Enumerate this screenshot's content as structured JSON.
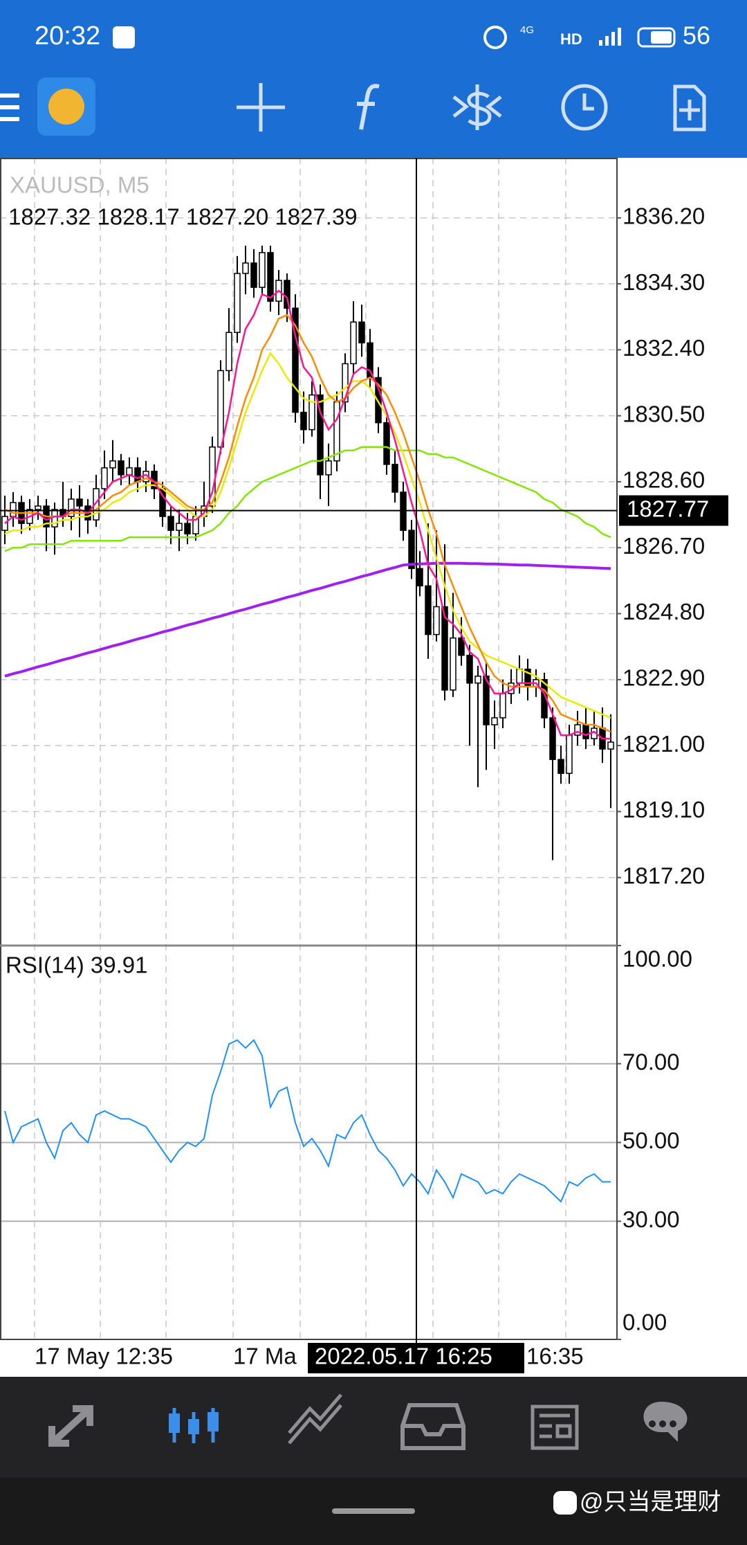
{
  "status_bar": {
    "time": "20:32",
    "network": "4G",
    "hd": "HD",
    "battery": "56"
  },
  "chart_data": [
    {
      "type": "candlestick",
      "title": "XAUUSD, M5",
      "subtitle": "1827.32 1828.17 1827.20 1827.39",
      "categories": [
        null,
        null,
        null,
        null,
        null,
        null,
        null,
        null,
        null,
        null,
        null,
        null,
        null,
        null,
        null,
        null,
        null,
        null,
        null,
        null,
        null,
        null,
        null,
        null,
        null,
        null,
        null,
        null,
        null,
        null,
        null,
        null,
        null,
        null,
        null,
        null,
        null,
        null,
        null,
        null,
        null,
        null,
        null,
        null,
        null,
        null,
        null,
        null,
        null,
        null,
        null,
        null,
        null,
        null,
        null,
        null,
        null,
        null,
        null,
        null,
        null,
        null,
        null,
        null,
        null,
        null,
        null,
        null,
        null,
        null,
        null,
        null,
        null,
        null
      ],
      "candles": [
        [
          1827.2,
          1828.2,
          1826.8,
          1827.6
        ],
        [
          1827.6,
          1828.3,
          1827.3,
          1828.0
        ],
        [
          1828.0,
          1828.2,
          1827.1,
          1827.4
        ],
        [
          1827.4,
          1828.1,
          1827.2,
          1827.8
        ],
        [
          1827.8,
          1828.2,
          1827.5,
          1827.9
        ],
        [
          1827.9,
          1828.1,
          1826.6,
          1827.3
        ],
        [
          1827.3,
          1828.0,
          1826.5,
          1827.8
        ],
        [
          1827.8,
          1828.6,
          1827.3,
          1827.6
        ],
        [
          1827.6,
          1828.4,
          1827.2,
          1828.1
        ],
        [
          1828.1,
          1828.5,
          1827.0,
          1827.9
        ],
        [
          1827.9,
          1828.1,
          1827.1,
          1827.5
        ],
        [
          1827.5,
          1828.8,
          1827.3,
          1828.4
        ],
        [
          1828.4,
          1829.5,
          1828.1,
          1829.0
        ],
        [
          1829.0,
          1829.8,
          1828.6,
          1829.2
        ],
        [
          1829.2,
          1829.4,
          1828.5,
          1828.8
        ],
        [
          1828.8,
          1829.3,
          1828.5,
          1829.0
        ],
        [
          1829.0,
          1829.3,
          1828.3,
          1828.6
        ],
        [
          1828.6,
          1829.2,
          1828.3,
          1828.9
        ],
        [
          1828.9,
          1829.1,
          1828.1,
          1828.4
        ],
        [
          1828.4,
          1828.6,
          1827.3,
          1827.6
        ],
        [
          1827.6,
          1827.9,
          1826.8,
          1827.2
        ],
        [
          1827.2,
          1827.8,
          1826.6,
          1827.4
        ],
        [
          1827.4,
          1827.7,
          1826.8,
          1827.1
        ],
        [
          1827.1,
          1827.9,
          1826.9,
          1827.6
        ],
        [
          1827.6,
          1828.6,
          1827.3,
          1827.9
        ],
        [
          1827.9,
          1829.9,
          1827.7,
          1829.6
        ],
        [
          1829.6,
          1832.1,
          1829.4,
          1831.8
        ],
        [
          1831.8,
          1833.6,
          1831.5,
          1832.9
        ],
        [
          1832.9,
          1835.1,
          1832.6,
          1834.6
        ],
        [
          1834.6,
          1835.4,
          1834.0,
          1834.9
        ],
        [
          1834.9,
          1835.3,
          1833.9,
          1834.2
        ],
        [
          1834.2,
          1835.4,
          1834.0,
          1835.2
        ],
        [
          1835.2,
          1835.4,
          1833.5,
          1833.8
        ],
        [
          1833.8,
          1834.7,
          1833.4,
          1834.4
        ],
        [
          1834.4,
          1834.6,
          1833.2,
          1833.6
        ],
        [
          1833.6,
          1834.0,
          1830.3,
          1830.6
        ],
        [
          1830.6,
          1831.2,
          1829.7,
          1830.1
        ],
        [
          1830.1,
          1831.5,
          1829.9,
          1831.1
        ],
        [
          1831.1,
          1831.4,
          1828.1,
          1828.8
        ],
        [
          1828.8,
          1829.7,
          1827.9,
          1829.2
        ],
        [
          1829.2,
          1831.2,
          1828.9,
          1830.9
        ],
        [
          1830.9,
          1832.3,
          1830.6,
          1832.0
        ],
        [
          1832.0,
          1833.8,
          1831.7,
          1833.2
        ],
        [
          1833.2,
          1833.7,
          1832.2,
          1832.6
        ],
        [
          1832.6,
          1833.0,
          1831.3,
          1831.6
        ],
        [
          1831.6,
          1831.9,
          1830.0,
          1830.3
        ],
        [
          1830.3,
          1830.6,
          1828.8,
          1829.1
        ],
        [
          1829.1,
          1829.5,
          1828.0,
          1828.3
        ],
        [
          1828.3,
          1828.6,
          1826.9,
          1827.2
        ],
        [
          1827.2,
          1827.5,
          1825.8,
          1826.1
        ],
        [
          1826.1,
          1826.6,
          1825.3,
          1825.6
        ],
        [
          1825.6,
          1827.4,
          1823.5,
          1824.2
        ],
        [
          1824.2,
          1827.2,
          1824.0,
          1825.0
        ],
        [
          1825.0,
          1826.8,
          1822.3,
          1822.6
        ],
        [
          1822.6,
          1825.4,
          1822.4,
          1824.1
        ],
        [
          1824.1,
          1824.7,
          1823.3,
          1823.6
        ],
        [
          1823.6,
          1823.9,
          1821.0,
          1822.8
        ],
        [
          1822.8,
          1823.3,
          1819.8,
          1823.0
        ],
        [
          1823.0,
          1823.4,
          1820.3,
          1821.6
        ],
        [
          1821.6,
          1822.3,
          1820.9,
          1821.8
        ],
        [
          1821.8,
          1822.9,
          1821.5,
          1822.5
        ],
        [
          1822.5,
          1823.2,
          1822.2,
          1822.8
        ],
        [
          1822.8,
          1823.6,
          1822.5,
          1823.2
        ],
        [
          1823.2,
          1823.5,
          1822.3,
          1822.7
        ],
        [
          1822.7,
          1823.2,
          1822.4,
          1822.9
        ],
        [
          1822.9,
          1823.1,
          1821.5,
          1821.8
        ],
        [
          1821.8,
          1822.1,
          1817.7,
          1820.6
        ],
        [
          1820.6,
          1821.0,
          1819.9,
          1820.2
        ],
        [
          1820.2,
          1821.6,
          1819.9,
          1821.3
        ],
        [
          1821.3,
          1822.0,
          1821.0,
          1821.6
        ],
        [
          1821.6,
          1822.1,
          1820.9,
          1821.2
        ],
        [
          1821.2,
          1822.0,
          1821.0,
          1821.5
        ],
        [
          1821.5,
          1822.1,
          1820.5,
          1820.9
        ],
        [
          1820.9,
          1821.9,
          1819.2,
          1821.1
        ]
      ],
      "series": [
        {
          "color": "#a020f0",
          "values": [
            1823.0,
            1823.07,
            1823.13,
            1823.2,
            1823.27,
            1823.33,
            1823.4,
            1823.47,
            1823.53,
            1823.6,
            1823.67,
            1823.73,
            1823.8,
            1823.87,
            1823.93,
            1824.0,
            1824.07,
            1824.13,
            1824.2,
            1824.27,
            1824.33,
            1824.4,
            1824.47,
            1824.53,
            1824.6,
            1824.67,
            1824.73,
            1824.8,
            1824.87,
            1824.93,
            1825.0,
            1825.07,
            1825.13,
            1825.2,
            1825.27,
            1825.33,
            1825.4,
            1825.47,
            1825.53,
            1825.6,
            1825.67,
            1825.73,
            1825.8,
            1825.87,
            1825.93,
            1826.0,
            1826.07,
            1826.13,
            1826.2,
            1826.22,
            1826.23,
            1826.24,
            1826.25,
            1826.25,
            1826.25,
            1826.25,
            1826.24,
            1826.24,
            1826.23,
            1826.23,
            1826.22,
            1826.21,
            1826.2,
            1826.2,
            1826.19,
            1826.18,
            1826.17,
            1826.16,
            1826.15,
            1826.14,
            1826.13,
            1826.12,
            1826.11,
            1826.1
          ]
        },
        {
          "color": "#84e600",
          "values": [
            1826.6,
            1826.7,
            1826.7,
            1826.8,
            1826.8,
            1826.8,
            1826.8,
            1826.8,
            1826.9,
            1826.9,
            1826.9,
            1826.9,
            1826.9,
            1826.9,
            1826.9,
            1827.0,
            1827.0,
            1827.0,
            1827.0,
            1827.0,
            1827.0,
            1827.0,
            1827.0,
            1827.0,
            1827.1,
            1827.2,
            1827.4,
            1827.7,
            1827.9,
            1828.2,
            1828.4,
            1828.6,
            1828.7,
            1828.8,
            1828.9,
            1829.0,
            1829.1,
            1829.2,
            1829.2,
            1829.3,
            1829.4,
            1829.5,
            1829.5,
            1829.6,
            1829.6,
            1829.6,
            1829.6,
            1829.5,
            1829.5,
            1829.5,
            1829.5,
            1829.4,
            1829.4,
            1829.3,
            1829.3,
            1829.2,
            1829.1,
            1829.0,
            1828.9,
            1828.8,
            1828.7,
            1828.6,
            1828.5,
            1828.4,
            1828.3,
            1828.1,
            1828.0,
            1827.8,
            1827.7,
            1827.6,
            1827.4,
            1827.3,
            1827.1,
            1827.0
          ]
        },
        {
          "color": "#eaea00",
          "values": [
            1827.1,
            1827.2,
            1827.2,
            1827.3,
            1827.3,
            1827.4,
            1827.4,
            1827.5,
            1827.5,
            1827.6,
            1827.6,
            1827.7,
            1827.8,
            1828.0,
            1828.1,
            1828.3,
            1828.4,
            1828.5,
            1828.5,
            1828.4,
            1828.2,
            1828.0,
            1827.8,
            1827.6,
            1827.6,
            1827.8,
            1828.3,
            1829.0,
            1829.8,
            1830.6,
            1831.2,
            1831.8,
            1832.3,
            1832.0,
            1831.6,
            1831.3,
            1831.0,
            1830.9,
            1830.9,
            1831.0,
            1831.1,
            1831.3,
            1831.5,
            1831.5,
            1831.3,
            1830.9,
            1830.5,
            1830.0,
            1829.4,
            1828.7,
            1828.0,
            1827.2,
            1826.4,
            1825.6,
            1824.9,
            1824.4,
            1824.0,
            1823.8,
            1823.6,
            1823.5,
            1823.4,
            1823.3,
            1823.2,
            1823.1,
            1823.0,
            1822.8,
            1822.6,
            1822.4,
            1822.3,
            1822.2,
            1822.1,
            1822.0,
            1821.9,
            1821.8
          ]
        },
        {
          "color": "#ff8c00",
          "values": [
            1827.8,
            1827.7,
            1827.7,
            1827.7,
            1827.7,
            1827.6,
            1827.6,
            1827.6,
            1827.7,
            1827.7,
            1827.7,
            1827.8,
            1828.0,
            1828.2,
            1828.3,
            1828.5,
            1828.6,
            1828.7,
            1828.6,
            1828.5,
            1828.3,
            1828.1,
            1827.9,
            1827.8,
            1827.8,
            1828.0,
            1828.6,
            1829.3,
            1830.2,
            1831.0,
            1831.6,
            1832.4,
            1832.8,
            1833.3,
            1833.4,
            1833.1,
            1832.6,
            1832.2,
            1831.6,
            1831.1,
            1830.9,
            1831.0,
            1831.3,
            1831.5,
            1831.6,
            1831.4,
            1831.1,
            1830.6,
            1830.0,
            1829.3,
            1828.6,
            1827.8,
            1827.1,
            1826.2,
            1825.6,
            1825.0,
            1824.4,
            1823.9,
            1823.4,
            1823.0,
            1822.8,
            1822.7,
            1822.7,
            1822.7,
            1822.7,
            1822.6,
            1822.3,
            1821.9,
            1821.8,
            1821.7,
            1821.6,
            1821.6,
            1821.5,
            1821.4
          ]
        },
        {
          "color": "#ff1493",
          "values": [
            1827.4,
            1827.6,
            1827.5,
            1827.6,
            1827.7,
            1827.5,
            1827.6,
            1827.6,
            1827.8,
            1827.8,
            1827.7,
            1828.0,
            1828.3,
            1828.6,
            1828.7,
            1828.8,
            1828.7,
            1828.8,
            1828.6,
            1828.2,
            1827.9,
            1827.7,
            1827.5,
            1827.5,
            1827.7,
            1828.3,
            1829.5,
            1830.6,
            1832.0,
            1833.0,
            1833.4,
            1834.0,
            1833.9,
            1834.1,
            1833.9,
            1832.8,
            1831.9,
            1831.6,
            1830.6,
            1830.1,
            1830.4,
            1831.0,
            1831.7,
            1831.9,
            1831.8,
            1831.3,
            1830.6,
            1829.8,
            1828.9,
            1828.0,
            1827.2,
            1826.2,
            1825.8,
            1824.7,
            1824.5,
            1824.2,
            1823.7,
            1823.5,
            1822.9,
            1822.5,
            1822.5,
            1822.6,
            1822.8,
            1822.8,
            1822.8,
            1822.5,
            1821.9,
            1821.3,
            1821.3,
            1821.4,
            1821.3,
            1821.4,
            1821.2,
            1821.2
          ]
        }
      ],
      "ylim": [
        1815.24,
        1837.93
      ],
      "yticks": [
        {
          "value": 1836.2,
          "label": "1836.20"
        },
        {
          "value": 1834.3,
          "label": "1834.30"
        },
        {
          "value": 1832.4,
          "label": "1832.40"
        },
        {
          "value": 1830.5,
          "label": "1830.50"
        },
        {
          "value": 1828.6,
          "label": "1828.60"
        },
        {
          "value": 1826.7,
          "label": "1826.70"
        },
        {
          "value": 1824.8,
          "label": "1824.80"
        },
        {
          "value": 1822.9,
          "label": "1822.90"
        },
        {
          "value": 1821,
          "label": "1821.00"
        },
        {
          "value": 1819.1,
          "label": "1819.10"
        },
        {
          "value": 1817.2,
          "label": "1817.20"
        }
      ],
      "grid": true,
      "crosshair": {
        "price": 1827.77,
        "time": "2022.05.17 16:25"
      },
      "time_labels": [
        "17 May 12:35",
        "17 Ma",
        "16:35"
      ]
    },
    {
      "type": "line",
      "title": "RSI(14) 39.91",
      "series": [
        {
          "color": "#1e90ff",
          "values": [
            58,
            50,
            54,
            55,
            56,
            50,
            46,
            53,
            55,
            52,
            50,
            57,
            58,
            57,
            56,
            56,
            55,
            54,
            51,
            48,
            45,
            48,
            50,
            49,
            51,
            62,
            68,
            75,
            76,
            74,
            76,
            72,
            59,
            63,
            64,
            55,
            49,
            51,
            48,
            44,
            52,
            51,
            55,
            57,
            52,
            48,
            46,
            43,
            39,
            42,
            40,
            37,
            43,
            40,
            36,
            42,
            41,
            40,
            37,
            38,
            37,
            40,
            42,
            41,
            40,
            39,
            37,
            35,
            40,
            39,
            41,
            42,
            40,
            40
          ]
        }
      ],
      "ylim": [
        0,
        100
      ],
      "yticks": [
        {
          "value": 100,
          "label": "100.00"
        },
        {
          "value": 70,
          "label": "70.00"
        },
        {
          "value": 50,
          "label": "50.00"
        },
        {
          "value": 30,
          "label": "30.00"
        },
        {
          "value": 0,
          "label": "0.00"
        }
      ],
      "grid": true
    }
  ],
  "watermark": "@只当是理财"
}
